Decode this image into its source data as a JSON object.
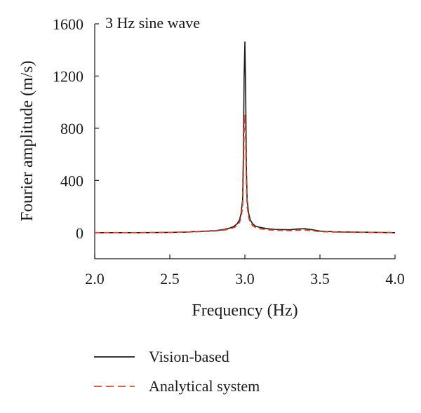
{
  "chart_data": {
    "type": "line",
    "annotation": "3 Hz sine wave",
    "xlabel": "Frequency (Hz)",
    "ylabel": "Fourier amplitude (m/s)",
    "xlim": [
      2.0,
      4.0
    ],
    "ylim": [
      -200,
      1600
    ],
    "xticks": [
      "2.0",
      "2.5",
      "3.0",
      "3.5",
      "4.0"
    ],
    "yticks": [
      "0",
      "400",
      "800",
      "1200",
      "1600"
    ],
    "grid": false,
    "legend_position": "bottom",
    "colors": {
      "vision": "#1a1a1a",
      "analytical": "#d9462b"
    },
    "series": [
      {
        "name": "Vision-based",
        "style": "solid",
        "peak": {
          "x": 3.0,
          "y": 1460
        },
        "x": [
          2.0,
          2.3,
          2.5,
          2.6,
          2.7,
          2.8,
          2.85,
          2.9,
          2.93,
          2.95,
          2.965,
          2.975,
          2.985,
          2.99,
          2.995,
          3.0,
          3.005,
          3.01,
          3.015,
          3.025,
          3.035,
          3.05,
          3.07,
          3.1,
          3.15,
          3.2,
          3.3,
          3.35,
          3.4,
          3.45,
          3.5,
          3.6,
          3.8,
          4.0
        ],
        "y": [
          0,
          0,
          2,
          4,
          10,
          15,
          22,
          35,
          50,
          70,
          100,
          150,
          250,
          600,
          1200,
          1460,
          1100,
          500,
          250,
          150,
          100,
          70,
          50,
          40,
          30,
          25,
          22,
          28,
          30,
          22,
          12,
          6,
          3,
          0
        ]
      },
      {
        "name": "Analytical system",
        "style": "dashed",
        "peak": {
          "x": 3.0,
          "y": 900
        },
        "x": [
          2.0,
          2.3,
          2.5,
          2.6,
          2.7,
          2.8,
          2.85,
          2.9,
          2.93,
          2.95,
          2.965,
          2.975,
          2.985,
          2.99,
          2.995,
          3.0,
          3.005,
          3.01,
          3.015,
          3.025,
          3.035,
          3.05,
          3.07,
          3.1,
          3.15,
          3.2,
          3.3,
          3.35,
          3.4,
          3.45,
          3.5,
          3.6,
          3.8,
          4.0
        ],
        "y": [
          0,
          0,
          2,
          4,
          8,
          12,
          18,
          28,
          40,
          55,
          80,
          120,
          200,
          420,
          780,
          900,
          720,
          380,
          200,
          120,
          80,
          55,
          40,
          30,
          22,
          18,
          15,
          18,
          20,
          15,
          8,
          4,
          2,
          0
        ]
      }
    ]
  }
}
